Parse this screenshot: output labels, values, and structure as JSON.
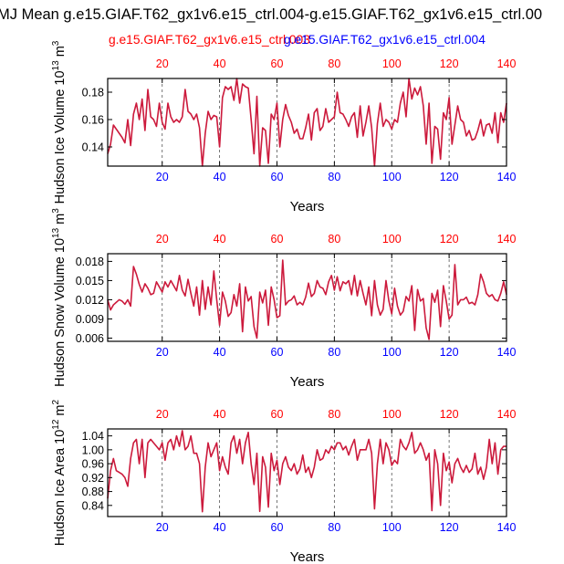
{
  "figure": {
    "title": "MJ Mean g.e15.GIAF.T62_gx1v6.e15_ctrl.004-g.e15.GIAF.T62_gx1v6.e15_ctrl.00",
    "legend_case1": "g.e15.GIAF.T62_gx1v6.e15_ctrl.003",
    "legend_case2": "g.e15.GIAF.T62_gx1v6.e15_ctrl.004",
    "color_case1": "#ff0000",
    "color_case2": "#0000ff",
    "line_color": "#cc1a3c"
  },
  "chart_data": [
    {
      "type": "line",
      "title": "",
      "xlabel": "Years",
      "ylabel": "Hudson Ice Volume 10^13 m^3",
      "ylabel_parts": {
        "pre": "Hudson Ice Volume 10",
        "exp1": "13",
        "mid": " m",
        "exp2": "3"
      },
      "xlim": [
        1,
        140
      ],
      "ylim": [
        0.126,
        0.19
      ],
      "x_ticks": [
        20,
        40,
        60,
        80,
        100,
        120,
        140
      ],
      "x_tick_labels": [
        "20",
        "40",
        "60",
        "80",
        "100",
        "120",
        "140"
      ],
      "y_ticks": [
        0.14,
        0.16,
        0.18
      ],
      "y_tick_labels": [
        "0.14",
        "0.16",
        "0.18"
      ],
      "grid_x": [
        20,
        40,
        60,
        80,
        100,
        120
      ],
      "x": [
        1,
        2,
        3,
        4,
        5,
        6,
        7,
        8,
        9,
        10,
        11,
        12,
        13,
        14,
        15,
        16,
        17,
        18,
        19,
        20,
        21,
        22,
        23,
        24,
        25,
        26,
        27,
        28,
        29,
        30,
        31,
        32,
        33,
        34,
        35,
        36,
        37,
        38,
        39,
        40,
        41,
        42,
        43,
        44,
        45,
        46,
        47,
        48,
        49,
        50,
        51,
        52,
        53,
        54,
        55,
        56,
        57,
        58,
        59,
        60,
        61,
        62,
        63,
        64,
        65,
        66,
        67,
        68,
        69,
        70,
        71,
        72,
        73,
        74,
        75,
        76,
        77,
        78,
        79,
        80,
        81,
        82,
        83,
        84,
        85,
        86,
        87,
        88,
        89,
        90,
        91,
        92,
        93,
        94,
        95,
        96,
        97,
        98,
        99,
        100,
        101,
        102,
        103,
        104,
        105,
        106,
        107,
        108,
        109,
        110,
        111,
        112,
        113,
        114,
        115,
        116,
        117,
        118,
        119,
        120,
        121,
        122,
        123,
        124,
        125,
        126,
        127,
        128,
        129,
        130,
        131,
        132,
        133,
        134,
        135,
        136,
        137,
        138,
        139,
        140
      ],
      "series": [
        {
          "name": "Hudson Ice Volume",
          "values": [
            0.135,
            0.142,
            0.156,
            0.153,
            0.15,
            0.147,
            0.143,
            0.16,
            0.141,
            0.164,
            0.172,
            0.16,
            0.175,
            0.152,
            0.182,
            0.162,
            0.16,
            0.155,
            0.172,
            0.158,
            0.153,
            0.172,
            0.162,
            0.158,
            0.16,
            0.158,
            0.162,
            0.182,
            0.166,
            0.164,
            0.16,
            0.164,
            0.154,
            0.126,
            0.15,
            0.166,
            0.16,
            0.163,
            0.162,
            0.14,
            0.176,
            0.184,
            0.182,
            0.184,
            0.174,
            0.19,
            0.172,
            0.186,
            0.184,
            0.183,
            0.16,
            0.135,
            0.177,
            0.126,
            0.154,
            0.152,
            0.128,
            0.164,
            0.16,
            0.172,
            0.14,
            0.16,
            0.171,
            0.163,
            0.158,
            0.15,
            0.153,
            0.146,
            0.146,
            0.154,
            0.164,
            0.145,
            0.165,
            0.168,
            0.152,
            0.155,
            0.168,
            0.158,
            0.16,
            0.162,
            0.18,
            0.165,
            0.164,
            0.16,
            0.155,
            0.162,
            0.165,
            0.147,
            0.17,
            0.148,
            0.158,
            0.17,
            0.154,
            0.126,
            0.157,
            0.172,
            0.155,
            0.16,
            0.158,
            0.153,
            0.16,
            0.158,
            0.172,
            0.18,
            0.162,
            0.19,
            0.175,
            0.183,
            0.178,
            0.184,
            0.17,
            0.142,
            0.172,
            0.128,
            0.155,
            0.153,
            0.131,
            0.165,
            0.16,
            0.176,
            0.142,
            0.156,
            0.17,
            0.16,
            0.158,
            0.148,
            0.152,
            0.145,
            0.146,
            0.152,
            0.16,
            0.148,
            0.156,
            0.157,
            0.15,
            0.165,
            0.143,
            0.165,
            0.158,
            0.172
          ]
        }
      ]
    },
    {
      "type": "line",
      "title": "",
      "xlabel": "Years",
      "ylabel": "Hudson Snow Volume 10^13 m^3",
      "ylabel_parts": {
        "pre": "Hudson Snow Volume 10",
        "exp1": "13",
        "mid": " m",
        "exp2": "3"
      },
      "xlim": [
        1,
        140
      ],
      "ylim": [
        0.0055,
        0.0192
      ],
      "x_ticks": [
        20,
        40,
        60,
        80,
        100,
        120,
        140
      ],
      "x_tick_labels": [
        "20",
        "40",
        "60",
        "80",
        "100",
        "120",
        "140"
      ],
      "y_ticks": [
        0.006,
        0.009,
        0.012,
        0.015,
        0.018
      ],
      "y_tick_labels": [
        "0.006",
        "0.009",
        "0.012",
        "0.015",
        "0.018"
      ],
      "grid_x": [
        20,
        40,
        60,
        80,
        100,
        120
      ],
      "x": [
        1,
        2,
        3,
        4,
        5,
        6,
        7,
        8,
        9,
        10,
        11,
        12,
        13,
        14,
        15,
        16,
        17,
        18,
        19,
        20,
        21,
        22,
        23,
        24,
        25,
        26,
        27,
        28,
        29,
        30,
        31,
        32,
        33,
        34,
        35,
        36,
        37,
        38,
        39,
        40,
        41,
        42,
        43,
        44,
        45,
        46,
        47,
        48,
        49,
        50,
        51,
        52,
        53,
        54,
        55,
        56,
        57,
        58,
        59,
        60,
        61,
        62,
        63,
        64,
        65,
        66,
        67,
        68,
        69,
        70,
        71,
        72,
        73,
        74,
        75,
        76,
        77,
        78,
        79,
        80,
        81,
        82,
        83,
        84,
        85,
        86,
        87,
        88,
        89,
        90,
        91,
        92,
        93,
        94,
        95,
        96,
        97,
        98,
        99,
        100,
        101,
        102,
        103,
        104,
        105,
        106,
        107,
        108,
        109,
        110,
        111,
        112,
        113,
        114,
        115,
        116,
        117,
        118,
        119,
        120,
        121,
        122,
        123,
        124,
        125,
        126,
        127,
        128,
        129,
        130,
        131,
        132,
        133,
        134,
        135,
        136,
        137,
        138,
        139,
        140
      ],
      "series": [
        {
          "name": "Hudson Snow Volume",
          "values": [
            0.012,
            0.0104,
            0.0112,
            0.0116,
            0.012,
            0.0118,
            0.0113,
            0.012,
            0.011,
            0.0172,
            0.016,
            0.0144,
            0.0132,
            0.0145,
            0.0138,
            0.0128,
            0.013,
            0.0148,
            0.014,
            0.0132,
            0.0148,
            0.014,
            0.015,
            0.0142,
            0.0134,
            0.0158,
            0.0135,
            0.0126,
            0.0152,
            0.013,
            0.011,
            0.014,
            0.0096,
            0.015,
            0.0105,
            0.014,
            0.0112,
            0.0165,
            0.012,
            0.008,
            0.0132,
            0.0118,
            0.0094,
            0.01,
            0.0128,
            0.011,
            0.0145,
            0.007,
            0.014,
            0.0118,
            0.0125,
            0.0078,
            0.006,
            0.0132,
            0.0115,
            0.0135,
            0.008,
            0.014,
            0.012,
            0.0092,
            0.0095,
            0.0182,
            0.0112,
            0.0118,
            0.012,
            0.0126,
            0.0112,
            0.0116,
            0.0112,
            0.0124,
            0.0146,
            0.0125,
            0.013,
            0.015,
            0.014,
            0.0138,
            0.0128,
            0.0148,
            0.0158,
            0.0135,
            0.0156,
            0.0134,
            0.0148,
            0.0145,
            0.015,
            0.0128,
            0.0158,
            0.0126,
            0.015,
            0.013,
            0.0112,
            0.014,
            0.0095,
            0.015,
            0.0112,
            0.0096,
            0.0105,
            0.015,
            0.0118,
            0.0098,
            0.0138,
            0.011,
            0.0096,
            0.0102,
            0.0125,
            0.0118,
            0.0142,
            0.0072,
            0.0136,
            0.0118,
            0.0122,
            0.0076,
            0.0058,
            0.013,
            0.0116,
            0.0135,
            0.0078,
            0.0142,
            0.0118,
            0.009,
            0.0096,
            0.0175,
            0.0112,
            0.012,
            0.012,
            0.0124,
            0.0114,
            0.0116,
            0.0112,
            0.0128,
            0.016,
            0.0148,
            0.013,
            0.0125,
            0.0128,
            0.012,
            0.0118,
            0.013,
            0.0148,
            0.0128
          ]
        }
      ]
    },
    {
      "type": "line",
      "title": "",
      "xlabel": "Years",
      "ylabel": "Hudson Ice Area 10^12 m^2",
      "ylabel_parts": {
        "pre": "Hudson Ice Area 10",
        "exp1": "12",
        "mid": " m",
        "exp2": "2"
      },
      "xlim": [
        1,
        140
      ],
      "ylim": [
        0.808,
        1.06
      ],
      "x_ticks": [
        20,
        40,
        60,
        80,
        100,
        120,
        140
      ],
      "x_tick_labels": [
        "20",
        "40",
        "60",
        "80",
        "100",
        "120",
        "140"
      ],
      "y_ticks": [
        0.84,
        0.88,
        0.92,
        0.96,
        1.0,
        1.04
      ],
      "y_tick_labels": [
        "0.84",
        "0.88",
        "0.92",
        "0.96",
        "1.00",
        "1.04"
      ],
      "grid_x": [
        20,
        40,
        60,
        80,
        100,
        120
      ],
      "x": [
        1,
        2,
        3,
        4,
        5,
        6,
        7,
        8,
        9,
        10,
        11,
        12,
        13,
        14,
        15,
        16,
        17,
        18,
        19,
        20,
        21,
        22,
        23,
        24,
        25,
        26,
        27,
        28,
        29,
        30,
        31,
        32,
        33,
        34,
        35,
        36,
        37,
        38,
        39,
        40,
        41,
        42,
        43,
        44,
        45,
        46,
        47,
        48,
        49,
        50,
        51,
        52,
        53,
        54,
        55,
        56,
        57,
        58,
        59,
        60,
        61,
        62,
        63,
        64,
        65,
        66,
        67,
        68,
        69,
        70,
        71,
        72,
        73,
        74,
        75,
        76,
        77,
        78,
        79,
        80,
        81,
        82,
        83,
        84,
        85,
        86,
        87,
        88,
        89,
        90,
        91,
        92,
        93,
        94,
        95,
        96,
        97,
        98,
        99,
        100,
        101,
        102,
        103,
        104,
        105,
        106,
        107,
        108,
        109,
        110,
        111,
        112,
        113,
        114,
        115,
        116,
        117,
        118,
        119,
        120,
        121,
        122,
        123,
        124,
        125,
        126,
        127,
        128,
        129,
        130,
        131,
        132,
        133,
        134,
        135,
        136,
        137,
        138,
        139,
        140
      ],
      "series": [
        {
          "name": "Hudson Ice Area",
          "values": [
            0.86,
            0.94,
            0.975,
            0.94,
            0.935,
            0.93,
            0.92,
            0.895,
            0.975,
            1.02,
            1.03,
            0.96,
            1.03,
            0.92,
            1.02,
            1.03,
            1.02,
            1.01,
            1.0,
            1.02,
            0.97,
            1.02,
            1.03,
            1.0,
            1.04,
            1.01,
            1.055,
            1.0,
            1.01,
            1.04,
            0.99,
            0.99,
            0.96,
            0.822,
            0.95,
            1.02,
            0.98,
            1.0,
            1.02,
            0.94,
            0.98,
            0.95,
            0.93,
            1.02,
            1.04,
            0.99,
            1.03,
            0.96,
            1.02,
            1.05,
            0.96,
            0.9,
            0.99,
            0.823,
            0.98,
            0.95,
            0.835,
            0.99,
            0.94,
            0.97,
            0.9,
            0.96,
            0.98,
            0.95,
            0.94,
            0.96,
            0.93,
            0.945,
            0.985,
            0.935,
            0.95,
            0.92,
            0.95,
            1.0,
            0.97,
            0.975,
            1.0,
            0.99,
            1.01,
            1.0,
            1.02,
            1.02,
            1.0,
            1.01,
            0.985,
            1.01,
            1.03,
            0.97,
            1.0,
            1.0,
            1.0,
            1.03,
            0.99,
            0.83,
            0.96,
            1.03,
            0.96,
            1.02,
            1.0,
            0.955,
            0.97,
            0.96,
            1.03,
            1.01,
            1.0,
            1.02,
            1.05,
            0.99,
            1.0,
            1.02,
            1.0,
            0.97,
            0.99,
            0.825,
            1.0,
            0.96,
            0.84,
            0.99,
            0.94,
            0.965,
            0.905,
            0.96,
            0.975,
            0.95,
            0.935,
            0.955,
            0.935,
            0.945,
            0.99,
            0.93,
            0.95,
            0.915,
            0.95,
            1.03,
            0.96,
            1.02,
            0.93,
            1.0,
            1.01,
            1.01
          ]
        }
      ]
    }
  ]
}
